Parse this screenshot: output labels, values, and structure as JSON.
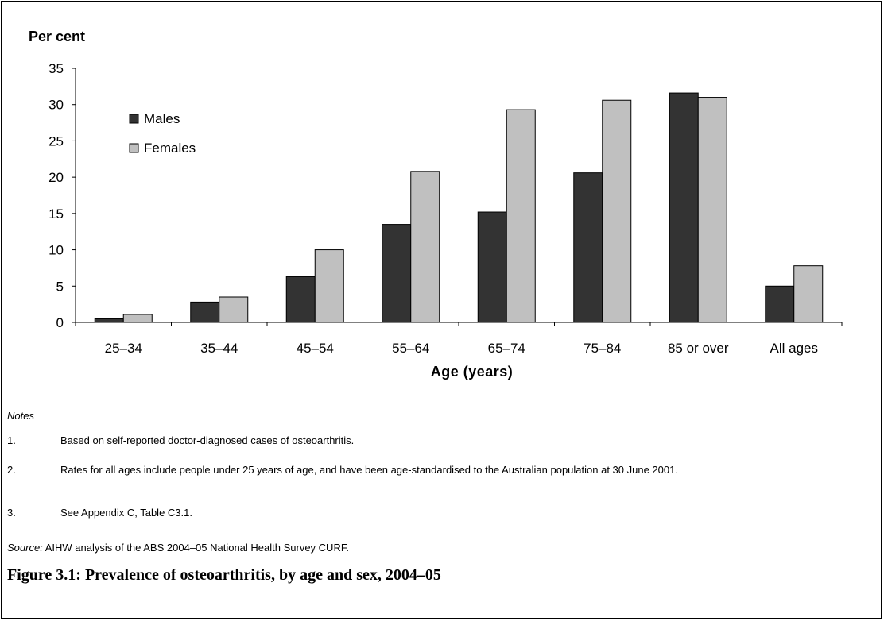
{
  "chart_data": {
    "type": "bar",
    "ylabel": "Per cent",
    "xlabel": "Age (years)",
    "categories": [
      "25–34",
      "35–44",
      "45–54",
      "55–64",
      "65–74",
      "75–84",
      "85 or over",
      "All ages"
    ],
    "series": [
      {
        "name": "Males",
        "color": "#333333",
        "values": [
          0.5,
          2.8,
          6.3,
          13.5,
          15.2,
          20.6,
          31.6,
          5.0
        ]
      },
      {
        "name": "Females",
        "color": "#c0c0c0",
        "values": [
          1.1,
          3.5,
          10.0,
          20.8,
          29.3,
          30.6,
          31.0,
          7.8
        ]
      }
    ],
    "ylim": [
      0,
      35
    ],
    "yticks": [
      0,
      5,
      10,
      15,
      20,
      25,
      30,
      35
    ],
    "grid": false,
    "legend": "top-left"
  },
  "notes": {
    "title": "Notes",
    "items": [
      {
        "num": "1.",
        "text": "Based on self-reported doctor-diagnosed cases of osteoarthritis."
      },
      {
        "num": "2.",
        "text": "Rates for all ages include people under 25 years of age, and have been age-standardised to the Australian population at 30 June 2001."
      },
      {
        "num": "3.",
        "text": "See Appendix C, Table C3.1."
      }
    ]
  },
  "source": {
    "label": "Source:",
    "text": " AIHW analysis of the ABS 2004–05 National Health Survey CURF."
  },
  "caption": "Figure 3.1: Prevalence of osteoarthritis, by age and sex, 2004–05"
}
